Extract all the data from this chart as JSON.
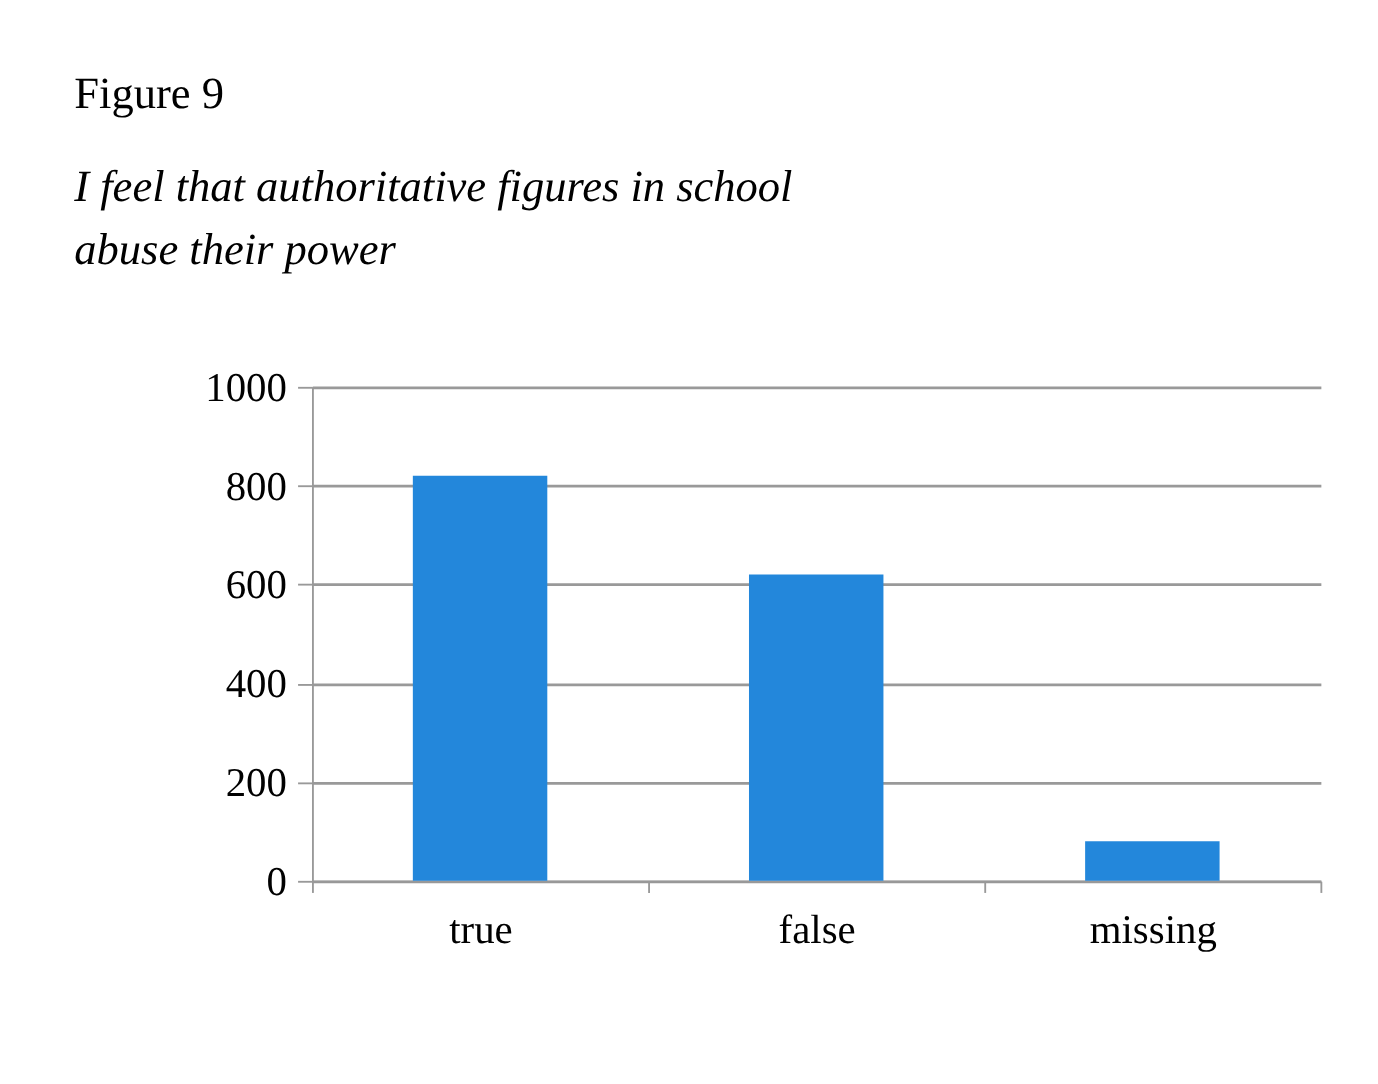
{
  "chart_data": {
    "type": "bar",
    "title": "Figure 9",
    "subtitle": " I feel that authoritative figures in school\nabuse their power",
    "categories": [
      "true",
      "false",
      "missing"
    ],
    "values": [
      820,
      620,
      80
    ],
    "color": "#2387db",
    "ylim": [
      0,
      1000
    ],
    "yticks": [
      0,
      200,
      400,
      600,
      800,
      1000
    ],
    "grid": "y"
  }
}
